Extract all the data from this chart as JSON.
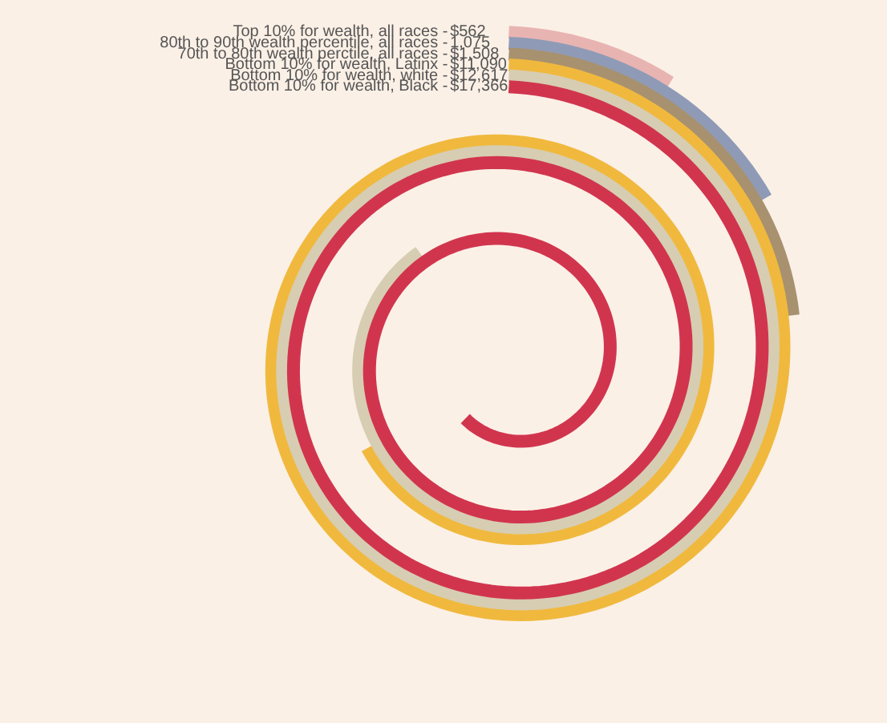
{
  "chart_data": {
    "type": "other",
    "categories": [
      "Top 10% for wealth, all races -",
      "80th to 90th wealth percentile, all races -",
      "70th to 80th wealth perctile, all races -",
      "Bottom 10% for wealth, Latinx -",
      "Bottom 10% for wealth, white -",
      "Bottom 10% for wealth, Black -"
    ],
    "value_labels": [
      "$562",
      "1,075",
      "$1,508",
      "$11,090",
      "$12,617",
      "$17,366"
    ],
    "values": [
      562,
      1075,
      1508,
      11090,
      12617,
      17366
    ],
    "colors": [
      "#e8b4b2",
      "#8f9bb6",
      "#a8916f",
      "#f0b93e",
      "#d7cdb2",
      "#d1354e"
    ]
  }
}
